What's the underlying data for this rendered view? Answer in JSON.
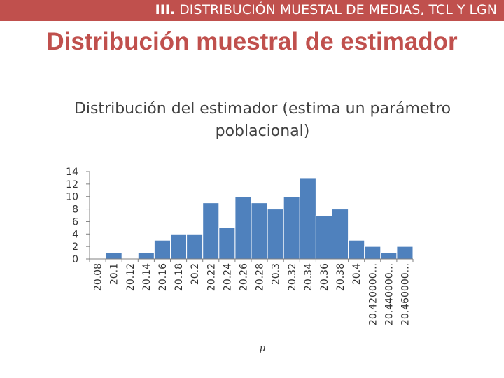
{
  "header": {
    "roman": "III.",
    "section": "DISTRIBUCIÓN MUESTAL DE MEDIAS, TCL Y LGN"
  },
  "slide": {
    "title": "Distribución muestral de estimador"
  },
  "colors": {
    "accent": "#c0504d",
    "bar_fill": "#4f81bd",
    "bar_stroke": "#ffffff"
  },
  "chart_data": {
    "type": "bar",
    "title": "Distribución del estimador (estima un parámetro poblacional)",
    "xlabel": "μ",
    "ylabel": "",
    "ylim": [
      0,
      14
    ],
    "yticks": [
      0,
      2,
      4,
      6,
      8,
      10,
      12,
      14
    ],
    "grid": false,
    "legend": "none",
    "categories": [
      "20.08",
      "20.1",
      "20.12",
      "20.14",
      "20.16",
      "20.18",
      "20.2",
      "20.22",
      "20.24",
      "20.26",
      "20.28",
      "20.3",
      "20.32",
      "20.34",
      "20.36",
      "20.38",
      "20.4",
      "20.420000...",
      "20.440000...",
      "20.460000..."
    ],
    "values": [
      0,
      1,
      0,
      1,
      3,
      4,
      4,
      9,
      5,
      10,
      9,
      8,
      10,
      13,
      7,
      8,
      3,
      2,
      1,
      2
    ]
  }
}
